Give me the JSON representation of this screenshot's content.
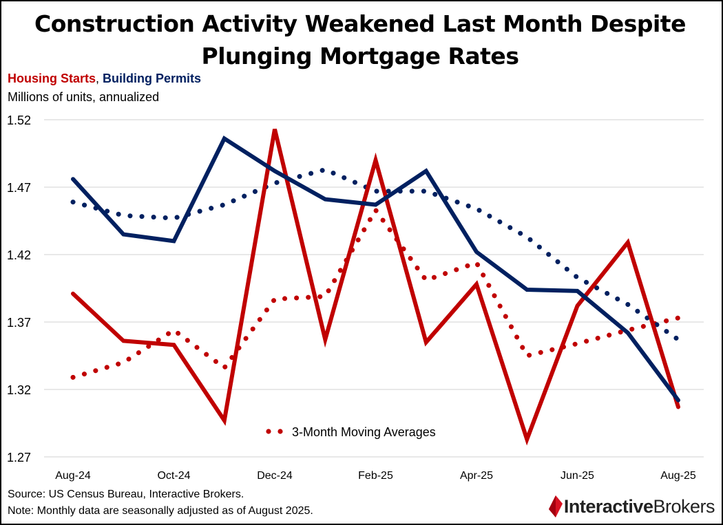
{
  "title_line1": "Construction Activity Weakened Last Month Despite",
  "title_line2": "Plunging Mortgage Rates",
  "legend_starts": "Housing Starts",
  "legend_sep": ",",
  "legend_permits": "Building Permits",
  "units": "Millions of units, annualized",
  "ma_label": "3-Month Moving Averages",
  "source": "Source: US Census Bureau, Interactive Brokers.",
  "note": "Note: Monthly data are seasonally adjusted as of August 2025.",
  "logo_bold": "Interactive",
  "logo_regular": "Brokers",
  "colors": {
    "starts": "#c00000",
    "permits": "#002060"
  },
  "chart_data": {
    "type": "line",
    "x": [
      "Aug-24",
      "Sep-24",
      "Oct-24",
      "Nov-24",
      "Dec-24",
      "Jan-25",
      "Feb-25",
      "Mar-25",
      "Apr-25",
      "May-25",
      "Jun-25",
      "Jul-25",
      "Aug-25"
    ],
    "tick_labels": [
      "Aug-24",
      "Oct-24",
      "Dec-24",
      "Feb-25",
      "Apr-25",
      "Jun-25",
      "Aug-25"
    ],
    "y_ticks": [
      "1.52",
      "1.47",
      "1.42",
      "1.37",
      "1.32",
      "1.27"
    ],
    "ylim": [
      1.27,
      1.52
    ],
    "grid": true,
    "series": [
      {
        "name": "Housing Starts",
        "style": "solid",
        "color": "#c00000",
        "values": [
          1.391,
          1.356,
          1.353,
          1.297,
          1.513,
          1.357,
          1.49,
          1.355,
          1.398,
          1.283,
          1.382,
          1.429,
          1.307
        ]
      },
      {
        "name": "Building Permits",
        "style": "solid",
        "color": "#002060",
        "values": [
          1.476,
          1.435,
          1.43,
          1.506,
          1.482,
          1.461,
          1.457,
          1.482,
          1.422,
          1.394,
          1.393,
          1.362,
          1.312
        ]
      },
      {
        "name": "Housing Starts",
        "style": "dotted",
        "color": "#c00000",
        "values": [
          1.329,
          1.34,
          1.364,
          1.336,
          1.387,
          1.389,
          1.453,
          1.401,
          1.414,
          1.345,
          1.354,
          1.364,
          1.373
        ]
      },
      {
        "name": "Building Permits",
        "style": "dotted",
        "color": "#002060",
        "values": [
          1.459,
          1.449,
          1.447,
          1.457,
          1.473,
          1.483,
          1.467,
          1.467,
          1.454,
          1.433,
          1.403,
          1.383,
          1.357
        ]
      }
    ]
  }
}
